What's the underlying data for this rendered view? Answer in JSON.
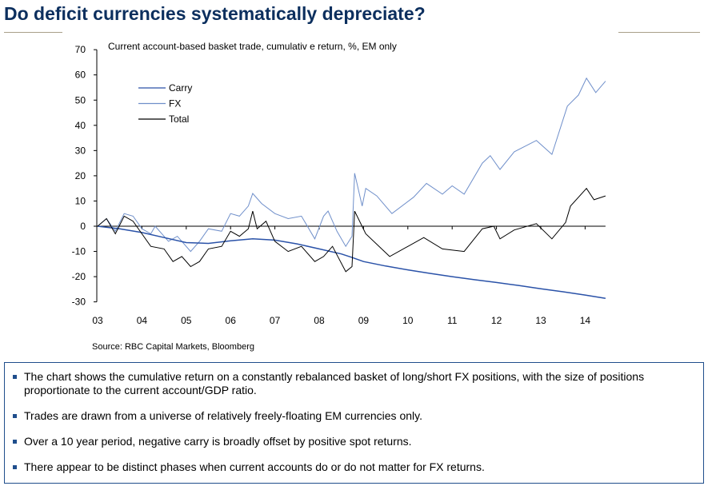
{
  "title": "Do deficit currencies systematically depreciate?",
  "colors": {
    "title": "#0c2f5e",
    "carry": "#2a52a8",
    "fx": "#6f8fca",
    "total": "#000000",
    "rule": "#a89f8a",
    "box_border": "#1f4e8c"
  },
  "chart_data": {
    "type": "line",
    "title": "Current account-based basket trade, cumulativ e return,  %, EM only",
    "xlabel": "",
    "ylabel": "",
    "xlim": [
      2003,
      2014.46
    ],
    "ylim": [
      -30,
      70
    ],
    "yticks": [
      70,
      60,
      50,
      40,
      30,
      20,
      10,
      0,
      -10,
      -20,
      -30
    ],
    "xticks": [
      "03",
      "04",
      "05",
      "06",
      "07",
      "08",
      "09",
      "10",
      "11",
      "12",
      "13",
      "14"
    ],
    "legend_position": "top-left",
    "grid": false,
    "source": "Source: RBC Capital Markets, Bloomberg",
    "series": [
      {
        "name": "Carry",
        "color": "#2a52a8",
        "x": [
          2003.0,
          2003.5,
          2004.0,
          2004.5,
          2005.0,
          2005.5,
          2006.0,
          2006.5,
          2007.0,
          2007.5,
          2008.0,
          2008.5,
          2008.74,
          2009.0,
          2009.5,
          2010.0,
          2010.5,
          2011.0,
          2011.5,
          2012.0,
          2012.5,
          2013.0,
          2013.5,
          2014.0,
          2014.46
        ],
        "y": [
          0,
          -1,
          -2.5,
          -4.5,
          -6.5,
          -6.8,
          -5.8,
          -5,
          -5.5,
          -7,
          -9,
          -11,
          -12.4,
          -14,
          -15.8,
          -17.3,
          -18.7,
          -20,
          -21.2,
          -22.3,
          -23.5,
          -24.8,
          -26,
          -27.3,
          -28.6
        ]
      },
      {
        "name": "FX",
        "color": "#6f8fca",
        "x": [
          2003.0,
          2003.2,
          2003.4,
          2003.6,
          2003.8,
          2004.0,
          2004.2,
          2004.3,
          2004.6,
          2004.8,
          2005.1,
          2005.3,
          2005.5,
          2005.8,
          2006.0,
          2006.2,
          2006.4,
          2006.5,
          2006.7,
          2007.0,
          2007.3,
          2007.6,
          2007.9,
          2008.1,
          2008.2,
          2008.4,
          2008.6,
          2008.74,
          2008.8,
          2008.97,
          2009.05,
          2009.3,
          2009.64,
          2010.13,
          2010.42,
          2010.78,
          2011.0,
          2011.27,
          2011.68,
          2011.86,
          2012.08,
          2012.4,
          2012.9,
          2013.25,
          2013.6,
          2013.85,
          2014.03,
          2014.24,
          2014.46
        ],
        "y": [
          0,
          3,
          -2,
          5,
          4,
          -1,
          -3,
          0,
          -6,
          -4,
          -10,
          -6,
          -1,
          -2,
          5,
          4,
          8,
          13,
          9,
          5,
          3,
          4,
          -5,
          4,
          6,
          -2,
          -8,
          -4,
          21,
          8,
          15,
          12,
          5,
          11.5,
          17,
          12.7,
          16,
          12.7,
          25,
          28,
          22.5,
          29.5,
          34,
          28.5,
          47.6,
          52,
          58.7,
          53,
          57.5
        ]
      },
      {
        "name": "Total",
        "color": "#000000",
        "x": [
          2003.0,
          2003.2,
          2003.4,
          2003.6,
          2003.8,
          2004.0,
          2004.2,
          2004.5,
          2004.7,
          2004.9,
          2005.1,
          2005.3,
          2005.5,
          2005.8,
          2006.0,
          2006.2,
          2006.4,
          2006.5,
          2006.6,
          2006.8,
          2007.0,
          2007.3,
          2007.6,
          2007.9,
          2008.1,
          2008.3,
          2008.6,
          2008.74,
          2008.8,
          2009.05,
          2009.59,
          2010.36,
          2010.78,
          2011.27,
          2011.68,
          2011.94,
          2012.08,
          2012.4,
          2012.9,
          2013.25,
          2013.56,
          2013.67,
          2014.03,
          2014.2,
          2014.46
        ],
        "y": [
          0,
          3,
          -3,
          4,
          2,
          -3,
          -8,
          -9,
          -14,
          -12,
          -16,
          -14,
          -9,
          -8,
          -2,
          -4,
          -1,
          6,
          -1,
          2,
          -6,
          -10,
          -8,
          -14,
          -12,
          -8,
          -18,
          -16,
          6,
          -3,
          -12,
          -4.5,
          -9,
          -10,
          -1,
          0,
          -5,
          -1.5,
          1,
          -5,
          1.5,
          8,
          15,
          10.5,
          12
        ]
      }
    ]
  },
  "bullets": [
    "The chart shows the cumulative return on a constantly rebalanced basket of long/short FX positions, with the size of positions proportionate to the current account/GDP ratio.",
    "Trades are drawn from a universe of relatively freely-floating EM currencies only.",
    "Over a 10 year period, negative carry is broadly offset by positive spot returns.",
    "There appear to be distinct phases when current accounts do or do not matter for FX returns."
  ]
}
